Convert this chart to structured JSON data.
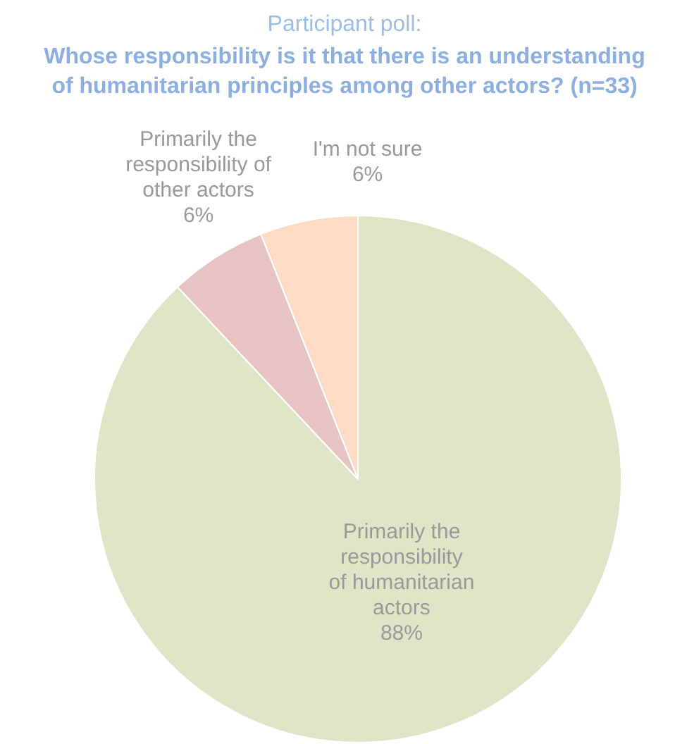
{
  "chart_data": {
    "type": "pie",
    "title": "Participant poll:",
    "subtitle": "Whose responsibility is it that there is an understanding of humanitarian principles among other actors? (n=33)",
    "categories": [
      "Primarily the responsibility of humanitarian actors",
      "Primarily the responsibility of other actors",
      "I'm not sure"
    ],
    "values": [
      88,
      6,
      6
    ],
    "colors": [
      "#dfe6c7",
      "#e8c3c3",
      "#fddcc3"
    ],
    "value_labels": [
      "88%",
      "6%",
      "6%"
    ]
  }
}
